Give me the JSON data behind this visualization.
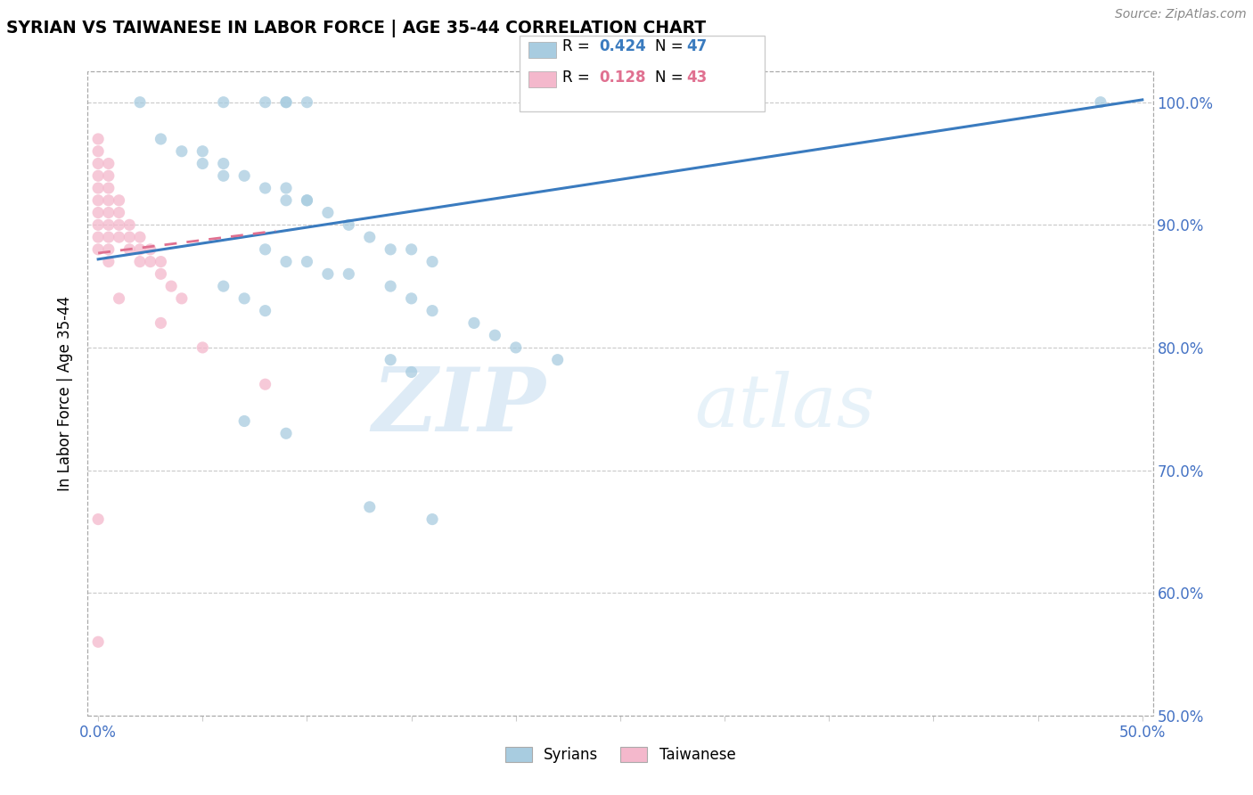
{
  "title": "SYRIAN VS TAIWANESE IN LABOR FORCE | AGE 35-44 CORRELATION CHART",
  "source": "Source: ZipAtlas.com",
  "ylabel": "In Labor Force | Age 35-44",
  "xlim": [
    -0.005,
    0.505
  ],
  "ylim": [
    0.5,
    1.025
  ],
  "xtick_positions": [
    0.0,
    0.05,
    0.1,
    0.15,
    0.2,
    0.25,
    0.3,
    0.35,
    0.4,
    0.45,
    0.5
  ],
  "xtick_labels": [
    "0.0%",
    "",
    "",
    "",
    "",
    "",
    "",
    "",
    "",
    "",
    "50.0%"
  ],
  "ytick_positions": [
    0.5,
    0.6,
    0.7,
    0.8,
    0.9,
    1.0
  ],
  "ytick_labels": [
    "50.0%",
    "60.0%",
    "70.0%",
    "80.0%",
    "90.0%",
    "100.0%"
  ],
  "syrian_color": "#a8cce0",
  "taiwanese_color": "#f4b8cc",
  "syrian_line_color": "#3a7bbf",
  "taiwanese_line_color": "#e07090",
  "syrian_line_dash": "solid",
  "taiwanese_line_dash": "dashed",
  "watermark_zip": "ZIP",
  "watermark_atlas": "atlas",
  "tick_color": "#4472c4",
  "syrian_x": [
    0.02,
    0.06,
    0.08,
    0.09,
    0.09,
    0.1,
    0.48,
    0.03,
    0.04,
    0.05,
    0.06,
    0.08,
    0.09,
    0.1,
    0.11,
    0.12,
    0.13,
    0.14,
    0.15,
    0.16,
    0.05,
    0.06,
    0.07,
    0.09,
    0.1,
    0.08,
    0.09,
    0.1,
    0.11,
    0.12,
    0.14,
    0.15,
    0.16,
    0.18,
    0.19,
    0.2,
    0.22,
    0.06,
    0.07,
    0.08,
    0.14,
    0.15,
    0.07,
    0.09,
    0.13,
    0.16
  ],
  "syrian_y": [
    1.0,
    1.0,
    1.0,
    1.0,
    1.0,
    1.0,
    1.0,
    0.97,
    0.96,
    0.95,
    0.94,
    0.93,
    0.92,
    0.92,
    0.91,
    0.9,
    0.89,
    0.88,
    0.88,
    0.87,
    0.96,
    0.95,
    0.94,
    0.93,
    0.92,
    0.88,
    0.87,
    0.87,
    0.86,
    0.86,
    0.85,
    0.84,
    0.83,
    0.82,
    0.81,
    0.8,
    0.79,
    0.85,
    0.84,
    0.83,
    0.79,
    0.78,
    0.74,
    0.73,
    0.67,
    0.66
  ],
  "taiwanese_x": [
    0.0,
    0.0,
    0.0,
    0.0,
    0.0,
    0.0,
    0.0,
    0.0,
    0.0,
    0.0,
    0.005,
    0.005,
    0.005,
    0.005,
    0.005,
    0.005,
    0.005,
    0.005,
    0.005,
    0.01,
    0.01,
    0.01,
    0.01,
    0.015,
    0.015,
    0.015,
    0.02,
    0.02,
    0.02,
    0.025,
    0.025,
    0.03,
    0.03,
    0.035,
    0.04,
    0.0,
    0.0,
    0.01,
    0.03,
    0.05,
    0.08
  ],
  "taiwanese_y": [
    0.97,
    0.96,
    0.95,
    0.94,
    0.93,
    0.92,
    0.91,
    0.9,
    0.89,
    0.88,
    0.95,
    0.94,
    0.93,
    0.92,
    0.91,
    0.9,
    0.89,
    0.88,
    0.87,
    0.92,
    0.91,
    0.9,
    0.89,
    0.9,
    0.89,
    0.88,
    0.89,
    0.88,
    0.87,
    0.88,
    0.87,
    0.87,
    0.86,
    0.85,
    0.84,
    0.66,
    0.56,
    0.84,
    0.82,
    0.8,
    0.77
  ]
}
